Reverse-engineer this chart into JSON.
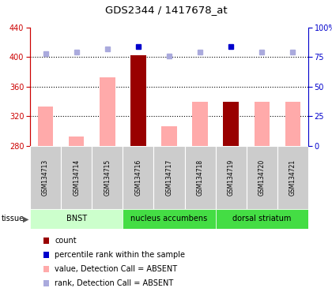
{
  "title": "GDS2344 / 1417678_at",
  "samples": [
    "GSM134713",
    "GSM134714",
    "GSM134715",
    "GSM134716",
    "GSM134717",
    "GSM134718",
    "GSM134719",
    "GSM134720",
    "GSM134721"
  ],
  "values": [
    333,
    293,
    373,
    403,
    307,
    340,
    340,
    340,
    340
  ],
  "is_count": [
    false,
    false,
    false,
    true,
    false,
    false,
    true,
    false,
    false
  ],
  "rank_pct": [
    78,
    79,
    82,
    84,
    76,
    79,
    84,
    79,
    79
  ],
  "rank_is_count": [
    false,
    false,
    false,
    true,
    false,
    false,
    true,
    false,
    false
  ],
  "ylim_left": [
    280,
    440
  ],
  "ylim_right": [
    0,
    100
  ],
  "yticks_left": [
    280,
    320,
    360,
    400,
    440
  ],
  "yticks_right": [
    0,
    25,
    50,
    75,
    100
  ],
  "tissues": [
    {
      "label": "BNST",
      "start": 0,
      "end": 3,
      "color": "#ccffcc"
    },
    {
      "label": "nucleus accumbens",
      "start": 3,
      "end": 6,
      "color": "#44dd44"
    },
    {
      "label": "dorsal striatum",
      "start": 6,
      "end": 9,
      "color": "#44dd44"
    }
  ],
  "bar_color_absent": "#ffaaaa",
  "bar_color_present": "#990000",
  "rank_color_absent": "#aaaadd",
  "rank_color_present": "#0000cc",
  "left_axis_color": "#cc0000",
  "right_axis_color": "#0000cc",
  "hline_values": [
    320,
    360,
    400
  ],
  "legend_entries": [
    {
      "label": "count",
      "color": "#990000"
    },
    {
      "label": "percentile rank within the sample",
      "color": "#0000cc"
    },
    {
      "label": "value, Detection Call = ABSENT",
      "color": "#ffaaaa"
    },
    {
      "label": "rank, Detection Call = ABSENT",
      "color": "#aaaadd"
    }
  ]
}
